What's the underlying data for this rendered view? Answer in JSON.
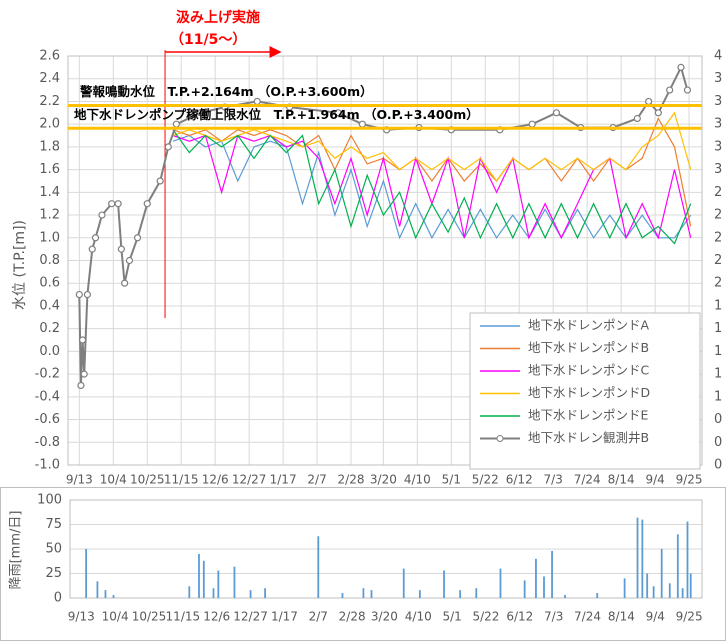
{
  "chart_data": [
    {
      "type": "line",
      "ylabel": "水位 (T.P.[m])",
      "xlim": [
        -7,
        385
      ],
      "xticks": [
        {
          "value": 0,
          "label": "9/13"
        },
        {
          "value": 21,
          "label": "10/4"
        },
        {
          "value": 42,
          "label": "10/25"
        },
        {
          "value": 63,
          "label": "11/15"
        },
        {
          "value": 84,
          "label": "12/6"
        },
        {
          "value": 105,
          "label": "12/27"
        },
        {
          "value": 126,
          "label": "1/17"
        },
        {
          "value": 147,
          "label": "2/7"
        },
        {
          "value": 168,
          "label": "2/28"
        },
        {
          "value": 188,
          "label": "3/20"
        },
        {
          "value": 209,
          "label": "4/10"
        },
        {
          "value": 230,
          "label": "5/1"
        },
        {
          "value": 251,
          "label": "5/22"
        },
        {
          "value": 272,
          "label": "6/12"
        },
        {
          "value": 293,
          "label": "7/3"
        },
        {
          "value": 314,
          "label": "7/24"
        },
        {
          "value": 335,
          "label": "8/14"
        },
        {
          "value": 356,
          "label": "9/4"
        },
        {
          "value": 377,
          "label": "9/25"
        }
      ],
      "ylim": [
        -1.0,
        2.6
      ],
      "yticks": [
        2.6,
        2.4,
        2.2,
        {
          "value": 2.0,
          "label": "2.0"
        },
        1.8,
        1.6,
        1.4,
        1.2,
        {
          "value": 1.0,
          "label": "1.0"
        },
        0.8,
        0.6,
        0.4,
        0.2,
        {
          "value": 0,
          "label": "0.0"
        },
        -0.2,
        -0.4,
        -0.6,
        -0.8,
        {
          "value": -1.0,
          "label": "-1.0"
        }
      ],
      "y2lim": [
        0.436,
        4.036
      ],
      "y2ticks": [
        {
          "value": 4.036,
          "label": "4"
        },
        {
          "value": 3.836,
          "label": "3"
        },
        {
          "value": 3.636,
          "label": "3"
        },
        {
          "value": 3.436,
          "label": "3"
        },
        {
          "value": 3.236,
          "label": "3"
        },
        {
          "value": 3.036,
          "label": "3"
        },
        {
          "value": 2.836,
          "label": "2"
        },
        {
          "value": 2.636,
          "label": "2"
        },
        {
          "value": 2.436,
          "label": "2"
        },
        {
          "value": 2.236,
          "label": "2"
        },
        {
          "value": 2.036,
          "label": "2"
        },
        {
          "value": 1.836,
          "label": "1"
        },
        {
          "value": 1.636,
          "label": "1"
        },
        {
          "value": 1.436,
          "label": "1"
        },
        {
          "value": 1.236,
          "label": "1"
        },
        {
          "value": 1.036,
          "label": "1"
        },
        {
          "value": 0.836,
          "label": "0"
        },
        {
          "value": 0.636,
          "label": "0"
        },
        {
          "value": 0.436,
          "label": "0"
        }
      ],
      "grid": true,
      "legend": "bottom-right",
      "annotations": [
        {
          "text": "汲み上げ実施",
          "color": "#ff0000"
        },
        {
          "text": "（11/5〜）",
          "color": "#ff0000"
        }
      ],
      "vline": {
        "value": 53,
        "color": "#ff0000"
      },
      "hlines": [
        {
          "value": 2.164,
          "label": "警報鳴動水位　T.P.+2.164m （O.P.+3.600m）",
          "color": "#ffc000"
        },
        {
          "value": 1.964,
          "label": "地下水ドレンポンプ稼働上限水位　T.P.+1.964m （O.P.+3.400m）",
          "color": "#ffc000"
        }
      ],
      "series": [
        {
          "name": "地下水ドレンポンドA",
          "color": "#5b9bd5",
          "x": [
            58,
            68,
            78,
            88,
            98,
            108,
            118,
            128,
            138,
            148,
            158,
            168,
            178,
            188,
            198,
            208,
            218,
            228,
            238,
            248,
            258,
            268,
            278,
            288,
            298,
            308,
            318,
            328,
            338,
            348,
            358,
            368,
            378
          ],
          "values": [
            1.85,
            1.9,
            1.8,
            1.85,
            1.5,
            1.8,
            1.85,
            1.8,
            1.3,
            1.75,
            1.2,
            1.6,
            1.1,
            1.5,
            1.0,
            1.3,
            1.0,
            1.25,
            1.0,
            1.25,
            1.0,
            1.2,
            1.0,
            1.25,
            1.0,
            1.25,
            1.0,
            1.2,
            1.0,
            1.2,
            1.0,
            1.0,
            1.2
          ]
        },
        {
          "name": "地下水ドレンポンドB",
          "color": "#ed7d31",
          "x": [
            58,
            68,
            78,
            88,
            98,
            108,
            118,
            128,
            138,
            148,
            158,
            168,
            178,
            188,
            198,
            208,
            218,
            228,
            238,
            248,
            258,
            268,
            278,
            288,
            298,
            308,
            318,
            328,
            338,
            348,
            358,
            368,
            378
          ],
          "values": [
            1.95,
            1.9,
            1.95,
            1.85,
            1.95,
            1.9,
            1.95,
            1.9,
            1.8,
            1.9,
            1.6,
            1.9,
            1.65,
            1.7,
            1.6,
            1.7,
            1.5,
            1.7,
            1.5,
            1.65,
            1.5,
            1.7,
            1.6,
            1.7,
            1.5,
            1.7,
            1.5,
            1.7,
            1.6,
            1.7,
            2.05,
            1.8,
            1.1
          ]
        },
        {
          "name": "地下水ドレンポンドC",
          "color": "#ff00ff",
          "x": [
            58,
            68,
            78,
            88,
            98,
            108,
            118,
            128,
            138,
            148,
            158,
            168,
            178,
            188,
            198,
            208,
            218,
            228,
            238,
            248,
            258,
            268,
            278,
            288,
            298,
            308,
            318,
            328,
            338,
            348,
            358,
            368,
            378
          ],
          "values": [
            1.9,
            1.85,
            1.9,
            1.4,
            1.9,
            1.85,
            1.9,
            1.8,
            1.85,
            1.7,
            1.3,
            1.7,
            1.2,
            1.7,
            1.1,
            1.7,
            1.3,
            1.7,
            1.0,
            1.7,
            1.4,
            1.7,
            1.0,
            1.3,
            1.0,
            1.3,
            1.6,
            1.7,
            1.0,
            1.3,
            1.0,
            1.6,
            1.0
          ]
        },
        {
          "name": "地下水ドレンポンドD",
          "color": "#ffc000",
          "x": [
            58,
            68,
            78,
            88,
            98,
            108,
            118,
            128,
            138,
            148,
            158,
            168,
            178,
            188,
            198,
            208,
            218,
            228,
            238,
            248,
            258,
            268,
            278,
            288,
            298,
            308,
            318,
            328,
            338,
            348,
            358,
            368,
            378
          ],
          "values": [
            1.9,
            1.95,
            1.9,
            1.85,
            1.9,
            1.95,
            1.9,
            1.85,
            1.8,
            1.85,
            1.7,
            1.8,
            1.7,
            1.75,
            1.6,
            1.7,
            1.6,
            1.7,
            1.6,
            1.7,
            1.5,
            1.7,
            1.6,
            1.7,
            1.6,
            1.7,
            1.6,
            1.7,
            1.6,
            1.8,
            1.9,
            2.1,
            1.6
          ]
        },
        {
          "name": "地下水ドレンポンドE",
          "color": "#00b050",
          "x": [
            58,
            68,
            78,
            88,
            98,
            108,
            118,
            128,
            138,
            148,
            158,
            168,
            178,
            188,
            198,
            208,
            218,
            228,
            238,
            248,
            258,
            268,
            278,
            288,
            298,
            308,
            318,
            328,
            338,
            348,
            358,
            368,
            378
          ],
          "values": [
            1.95,
            1.75,
            1.9,
            1.8,
            1.9,
            1.7,
            1.9,
            1.75,
            1.9,
            1.3,
            1.6,
            1.1,
            1.55,
            1.2,
            1.4,
            1.0,
            1.3,
            1.05,
            1.35,
            1.0,
            1.3,
            1.0,
            1.3,
            1.0,
            1.3,
            1.0,
            1.3,
            1.0,
            1.3,
            1.0,
            1.1,
            0.95,
            1.3
          ]
        },
        {
          "name": "地下水ドレン観測井B",
          "color": "#7f7f7f",
          "marker": "circle",
          "x": [
            0,
            1,
            2,
            3,
            5,
            8,
            10,
            14,
            20,
            24,
            26,
            28,
            31,
            36,
            42,
            50,
            55,
            60,
            75,
            90,
            110,
            130,
            160,
            175,
            190,
            210,
            230,
            260,
            280,
            295,
            310,
            330,
            345,
            352,
            358,
            365,
            372,
            376
          ],
          "values": [
            0.5,
            -0.3,
            0.1,
            -0.2,
            0.5,
            0.9,
            1.0,
            1.2,
            1.3,
            1.3,
            0.9,
            0.6,
            0.8,
            1.0,
            1.3,
            1.5,
            1.8,
            2.0,
            2.1,
            2.15,
            2.2,
            2.15,
            2.1,
            2.0,
            1.95,
            1.97,
            1.95,
            1.95,
            2.0,
            2.1,
            1.97,
            1.97,
            2.05,
            2.2,
            2.1,
            2.3,
            2.5,
            2.3
          ]
        }
      ]
    },
    {
      "type": "bar",
      "ylabel": "降雨[mm/日]",
      "xlim": [
        -7,
        385
      ],
      "xticks": [
        {
          "value": 0,
          "label": "9/13"
        },
        {
          "value": 21,
          "label": "10/4"
        },
        {
          "value": 42,
          "label": "10/25"
        },
        {
          "value": 63,
          "label": "11/15"
        },
        {
          "value": 84,
          "label": "12/6"
        },
        {
          "value": 105,
          "label": "12/27"
        },
        {
          "value": 126,
          "label": "1/17"
        },
        {
          "value": 147,
          "label": "2/7"
        },
        {
          "value": 168,
          "label": "2/28"
        },
        {
          "value": 188,
          "label": "3/20"
        },
        {
          "value": 209,
          "label": "4/10"
        },
        {
          "value": 230,
          "label": "5/1"
        },
        {
          "value": 251,
          "label": "5/22"
        },
        {
          "value": 272,
          "label": "6/12"
        },
        {
          "value": 293,
          "label": "7/3"
        },
        {
          "value": 314,
          "label": "7/24"
        },
        {
          "value": 335,
          "label": "8/14"
        },
        {
          "value": 356,
          "label": "9/4"
        },
        {
          "value": 377,
          "label": "9/25"
        }
      ],
      "ylim": [
        0,
        100
      ],
      "yticks": [
        100,
        75,
        50,
        25,
        0
      ],
      "grid": true,
      "color": "#5b9bd5",
      "x": [
        3,
        10,
        15,
        20,
        67,
        73,
        76,
        82,
        85,
        95,
        105,
        114,
        147,
        162,
        175,
        180,
        200,
        210,
        225,
        235,
        245,
        260,
        275,
        282,
        287,
        292,
        300,
        320,
        337,
        345,
        348,
        351,
        355,
        360,
        365,
        370,
        373,
        376,
        378
      ],
      "values": [
        50,
        17,
        8,
        3,
        12,
        45,
        38,
        10,
        28,
        32,
        8,
        10,
        63,
        5,
        10,
        8,
        30,
        8,
        28,
        8,
        10,
        30,
        18,
        40,
        22,
        48,
        3,
        5,
        20,
        82,
        80,
        25,
        12,
        50,
        15,
        65,
        10,
        78,
        25
      ]
    }
  ]
}
